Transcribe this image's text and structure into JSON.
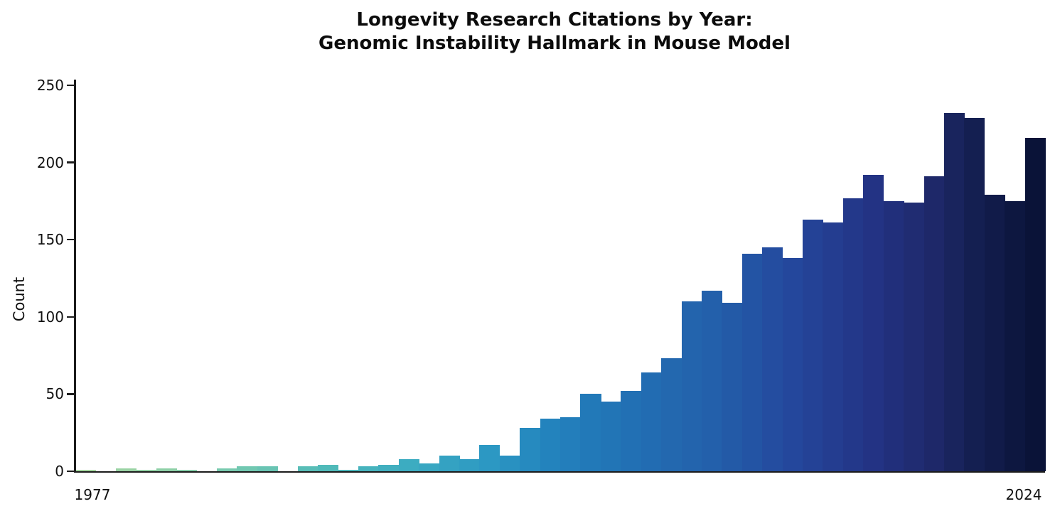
{
  "chart_data": {
    "type": "bar",
    "title_line1": "Longevity Research Citations by Year:",
    "title_line2": "Genomic Instability Hallmark in Mouse Model",
    "xlabel": "",
    "ylabel": "Count",
    "x": [
      1977,
      1978,
      1979,
      1980,
      1981,
      1982,
      1983,
      1984,
      1985,
      1986,
      1987,
      1988,
      1989,
      1990,
      1991,
      1992,
      1993,
      1994,
      1995,
      1996,
      1997,
      1998,
      1999,
      2000,
      2001,
      2002,
      2003,
      2004,
      2005,
      2006,
      2007,
      2008,
      2009,
      2010,
      2011,
      2012,
      2013,
      2014,
      2015,
      2016,
      2017,
      2018,
      2019,
      2020,
      2021,
      2022,
      2023,
      2024
    ],
    "values": [
      1,
      0,
      2,
      1,
      2,
      1,
      0,
      2,
      3,
      3,
      0,
      3,
      4,
      1,
      3,
      4,
      8,
      5,
      10,
      8,
      17,
      10,
      28,
      34,
      35,
      50,
      45,
      52,
      64,
      73,
      110,
      117,
      109,
      141,
      145,
      138,
      163,
      161,
      177,
      192,
      175,
      174,
      191,
      232,
      229,
      179,
      175,
      216
    ],
    "ylim": [
      0,
      250
    ],
    "yticks": [
      0,
      50,
      100,
      150,
      200,
      250
    ],
    "xtick_labels": [
      "1977",
      "2024"
    ],
    "grid": false,
    "legend_position": "none",
    "bar_gap": 0,
    "axis_color": "#1c1c1c",
    "text_color": "#111111",
    "background_color": "#ffffff",
    "colormap_stops": [
      {
        "t": 0.0,
        "c": "#a6d7a0"
      },
      {
        "t": 0.085,
        "c": "#8ed0a7"
      },
      {
        "t": 0.17,
        "c": "#71c8b1"
      },
      {
        "t": 0.255,
        "c": "#50bab9"
      },
      {
        "t": 0.34,
        "c": "#3cacc1"
      },
      {
        "t": 0.426,
        "c": "#2c98c3"
      },
      {
        "t": 0.489,
        "c": "#2383bd"
      },
      {
        "t": 0.574,
        "c": "#2270b4"
      },
      {
        "t": 0.66,
        "c": "#2360ab"
      },
      {
        "t": 0.745,
        "c": "#24479c"
      },
      {
        "t": 0.83,
        "c": "#233384"
      },
      {
        "t": 0.894,
        "c": "#1e2869"
      },
      {
        "t": 0.936,
        "c": "#141f51"
      },
      {
        "t": 1.0,
        "c": "#0a1338"
      }
    ]
  }
}
